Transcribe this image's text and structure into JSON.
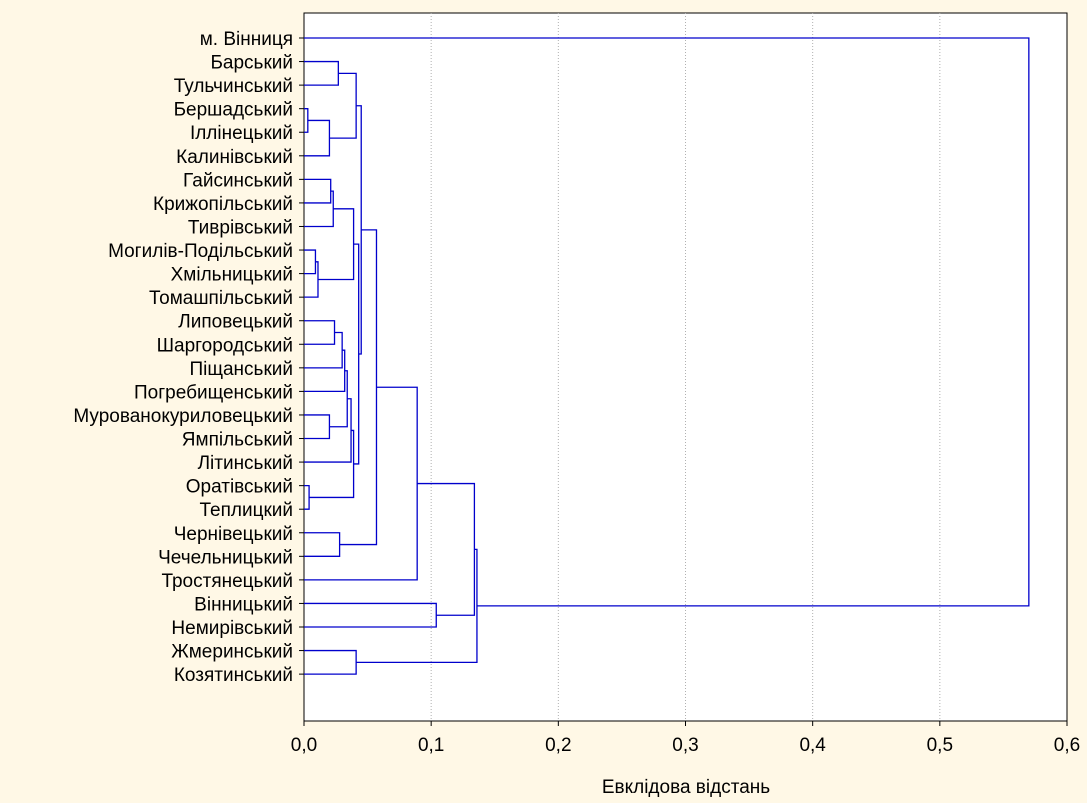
{
  "chart_data": {
    "type": "dendrogram",
    "orientation": "horizontal",
    "xlabel": "Евклідова відстань",
    "xlim": [
      0,
      0.6
    ],
    "xticks": [
      "0,0",
      "0,1",
      "0,2",
      "0,3",
      "0,4",
      "0,5",
      "0,6"
    ],
    "grid": "vertical-dotted",
    "colors": {
      "line": "#0000cc",
      "background": "#fff8e6",
      "plot_bg": "#ffffff",
      "grid": "#b0b0b0"
    },
    "leaves": [
      "м. Вінниця",
      "Барський",
      "Тульчинський",
      "Бершадський",
      "Іллінецький",
      "Калинівський",
      "Гайсинський",
      "Крижопільський",
      "Тиврівський",
      "Могилів-Подільський",
      "Хмільницький",
      "Томашпільський",
      "Липовецький",
      "Шаргородський",
      "Піщанський",
      "Погребищенський",
      "Мурованокуриловецький",
      "Ямпільський",
      "Літинський",
      "Оратівський",
      "Теплицкий",
      "Чернівецький",
      "Чечельницький",
      "Тростянецький",
      "Вінницький",
      "Немирівський",
      "Жмеринський",
      "Козятинський"
    ],
    "merges": [
      {
        "a": "L3",
        "b": "L4",
        "height": 0.003
      },
      {
        "a": "L19",
        "b": "L20",
        "height": 0.004
      },
      {
        "a": "L9",
        "b": "L10",
        "height": 0.009
      },
      {
        "a": "N2",
        "b": "L11",
        "height": 0.011
      },
      {
        "a": "L16",
        "b": "L17",
        "height": 0.02
      },
      {
        "a": "N0",
        "b": "L5",
        "height": 0.02
      },
      {
        "a": "L6",
        "b": "L7",
        "height": 0.021
      },
      {
        "a": "N6",
        "b": "L8",
        "height": 0.023
      },
      {
        "a": "L12",
        "b": "L13",
        "height": 0.024
      },
      {
        "a": "L1",
        "b": "L2",
        "height": 0.027
      },
      {
        "a": "L21",
        "b": "L22",
        "height": 0.028
      },
      {
        "a": "N8",
        "b": "L14",
        "height": 0.03
      },
      {
        "a": "N11",
        "b": "L15",
        "height": 0.032
      },
      {
        "a": "N12",
        "b": "N4",
        "height": 0.034
      },
      {
        "a": "N13",
        "b": "L18",
        "height": 0.037
      },
      {
        "a": "N14",
        "b": "N1",
        "height": 0.039
      },
      {
        "a": "N7",
        "b": "N3",
        "height": 0.039
      },
      {
        "a": "N9",
        "b": "N5",
        "height": 0.041
      },
      {
        "a": "L26",
        "b": "L27",
        "height": 0.041
      },
      {
        "a": "N16",
        "b": "N15",
        "height": 0.043
      },
      {
        "a": "N17",
        "b": "N19",
        "height": 0.045
      },
      {
        "a": "N20",
        "b": "N10",
        "height": 0.057
      },
      {
        "a": "N21",
        "b": "L23",
        "height": 0.089
      },
      {
        "a": "L24",
        "b": "L25",
        "height": 0.104
      },
      {
        "a": "N22",
        "b": "N23",
        "height": 0.134
      },
      {
        "a": "N24",
        "b": "N18",
        "height": 0.136
      },
      {
        "a": "L0",
        "b": "N25",
        "height": 0.57
      }
    ]
  }
}
